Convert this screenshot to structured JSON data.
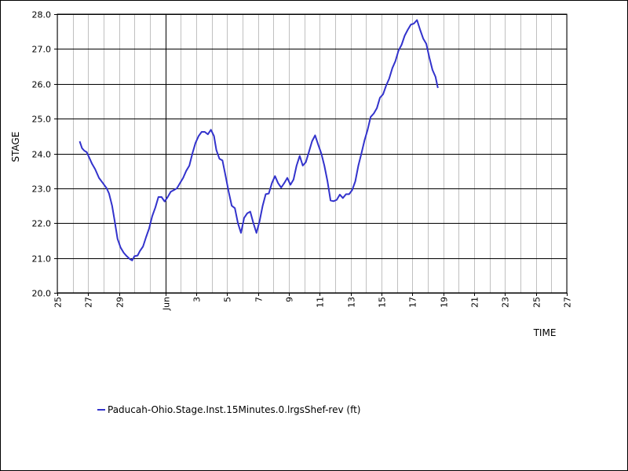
{
  "chart_data": {
    "type": "line",
    "xlabel": "TIME",
    "ylabel": "STAGE",
    "ylim": [
      20.0,
      28.0
    ],
    "y_ticks": [
      "20.0",
      "21.0",
      "22.0",
      "23.0",
      "24.0",
      "25.0",
      "26.0",
      "27.0",
      "28.0"
    ],
    "x_tick_labels": [
      {
        "day": -6,
        "label": "25"
      },
      {
        "day": -4,
        "label": "27"
      },
      {
        "day": -2,
        "label": "29"
      },
      {
        "day": 1,
        "label": "Jun"
      },
      {
        "day": 3,
        "label": "3"
      },
      {
        "day": 5,
        "label": "5"
      },
      {
        "day": 7,
        "label": "7"
      },
      {
        "day": 9,
        "label": "9"
      },
      {
        "day": 11,
        "label": "11"
      },
      {
        "day": 13,
        "label": "13"
      },
      {
        "day": 15,
        "label": "15"
      },
      {
        "day": 17,
        "label": "17"
      },
      {
        "day": 19,
        "label": "19"
      },
      {
        "day": 21,
        "label": "21"
      },
      {
        "day": 23,
        "label": "23"
      },
      {
        "day": 25,
        "label": "25"
      },
      {
        "day": 27,
        "label": "27"
      }
    ],
    "vertical_grid_days": [
      -6,
      -5,
      -4,
      -3,
      -2,
      -1,
      0,
      1,
      2,
      3,
      4,
      5,
      6,
      7,
      8,
      9,
      10,
      11,
      12,
      13,
      14,
      15,
      16,
      17,
      18,
      19,
      20,
      21,
      22,
      23,
      24,
      25,
      26,
      27
    ],
    "major_grid_day": 1,
    "xlim": [
      -6,
      27
    ],
    "x_units": "day of June (negative = late May)",
    "colors": {
      "series": "#3333cc",
      "grid_minor": "#c0c0c0",
      "grid_major": "#000000"
    },
    "series": [
      {
        "name": "Paducah-Ohio.Stage.Inst.15Minutes.0.lrgsShef-rev (ft)",
        "points": [
          [
            -4.55,
            24.35
          ],
          [
            -4.4,
            24.15
          ],
          [
            -4.25,
            24.08
          ],
          [
            -4.1,
            24.04
          ],
          [
            -3.95,
            23.9
          ],
          [
            -3.75,
            23.7
          ],
          [
            -3.55,
            23.55
          ],
          [
            -3.3,
            23.3
          ],
          [
            -3.05,
            23.15
          ],
          [
            -2.8,
            23.0
          ],
          [
            -2.65,
            22.85
          ],
          [
            -2.45,
            22.5
          ],
          [
            -2.3,
            22.1
          ],
          [
            -2.1,
            21.55
          ],
          [
            -1.9,
            21.3
          ],
          [
            -1.7,
            21.15
          ],
          [
            -1.5,
            21.05
          ],
          [
            -1.3,
            20.97
          ],
          [
            -1.15,
            20.93
          ],
          [
            -1.0,
            21.05
          ],
          [
            -0.8,
            21.07
          ],
          [
            -0.65,
            21.2
          ],
          [
            -0.45,
            21.33
          ],
          [
            -0.25,
            21.6
          ],
          [
            -0.05,
            21.85
          ],
          [
            0.15,
            22.2
          ],
          [
            0.35,
            22.45
          ],
          [
            0.55,
            22.75
          ],
          [
            0.75,
            22.75
          ],
          [
            0.95,
            22.62
          ],
          [
            1.15,
            22.75
          ],
          [
            1.35,
            22.9
          ],
          [
            1.55,
            22.95
          ],
          [
            1.75,
            23.0
          ],
          [
            1.95,
            23.15
          ],
          [
            2.15,
            23.3
          ],
          [
            2.35,
            23.5
          ],
          [
            2.55,
            23.65
          ],
          [
            2.75,
            24.0
          ],
          [
            2.95,
            24.3
          ],
          [
            3.15,
            24.5
          ],
          [
            3.35,
            24.62
          ],
          [
            3.55,
            24.62
          ],
          [
            3.75,
            24.55
          ],
          [
            3.95,
            24.68
          ],
          [
            4.15,
            24.5
          ],
          [
            4.3,
            24.1
          ],
          [
            4.5,
            23.85
          ],
          [
            4.7,
            23.8
          ],
          [
            4.9,
            23.35
          ],
          [
            5.1,
            22.9
          ],
          [
            5.3,
            22.5
          ],
          [
            5.5,
            22.43
          ],
          [
            5.7,
            22.0
          ],
          [
            5.9,
            21.72
          ],
          [
            6.1,
            22.15
          ],
          [
            6.3,
            22.28
          ],
          [
            6.5,
            22.33
          ],
          [
            6.7,
            22.0
          ],
          [
            6.9,
            21.72
          ],
          [
            7.1,
            22.05
          ],
          [
            7.3,
            22.5
          ],
          [
            7.5,
            22.83
          ],
          [
            7.7,
            22.85
          ],
          [
            7.9,
            23.15
          ],
          [
            8.1,
            23.35
          ],
          [
            8.3,
            23.15
          ],
          [
            8.5,
            23.02
          ],
          [
            8.7,
            23.15
          ],
          [
            8.9,
            23.3
          ],
          [
            9.1,
            23.1
          ],
          [
            9.3,
            23.25
          ],
          [
            9.5,
            23.65
          ],
          [
            9.7,
            23.93
          ],
          [
            9.9,
            23.65
          ],
          [
            10.1,
            23.75
          ],
          [
            10.3,
            24.05
          ],
          [
            10.5,
            24.35
          ],
          [
            10.7,
            24.52
          ],
          [
            10.9,
            24.25
          ],
          [
            11.1,
            24.0
          ],
          [
            11.3,
            23.65
          ],
          [
            11.5,
            23.2
          ],
          [
            11.7,
            22.65
          ],
          [
            11.9,
            22.63
          ],
          [
            12.1,
            22.67
          ],
          [
            12.3,
            22.82
          ],
          [
            12.5,
            22.72
          ],
          [
            12.7,
            22.83
          ],
          [
            12.9,
            22.83
          ],
          [
            13.1,
            22.95
          ],
          [
            13.3,
            23.2
          ],
          [
            13.5,
            23.65
          ],
          [
            13.7,
            24.0
          ],
          [
            13.9,
            24.38
          ],
          [
            14.1,
            24.68
          ],
          [
            14.3,
            25.05
          ],
          [
            14.5,
            25.15
          ],
          [
            14.7,
            25.3
          ],
          [
            14.9,
            25.6
          ],
          [
            15.1,
            25.7
          ],
          [
            15.3,
            25.95
          ],
          [
            15.5,
            26.15
          ],
          [
            15.7,
            26.45
          ],
          [
            15.9,
            26.65
          ],
          [
            16.1,
            26.95
          ],
          [
            16.3,
            27.12
          ],
          [
            16.5,
            27.38
          ],
          [
            16.7,
            27.55
          ],
          [
            16.9,
            27.7
          ],
          [
            17.1,
            27.73
          ],
          [
            17.3,
            27.83
          ],
          [
            17.5,
            27.55
          ],
          [
            17.7,
            27.3
          ],
          [
            17.9,
            27.15
          ],
          [
            18.1,
            26.75
          ],
          [
            18.3,
            26.4
          ],
          [
            18.5,
            26.2
          ],
          [
            18.65,
            25.88
          ]
        ]
      }
    ]
  }
}
